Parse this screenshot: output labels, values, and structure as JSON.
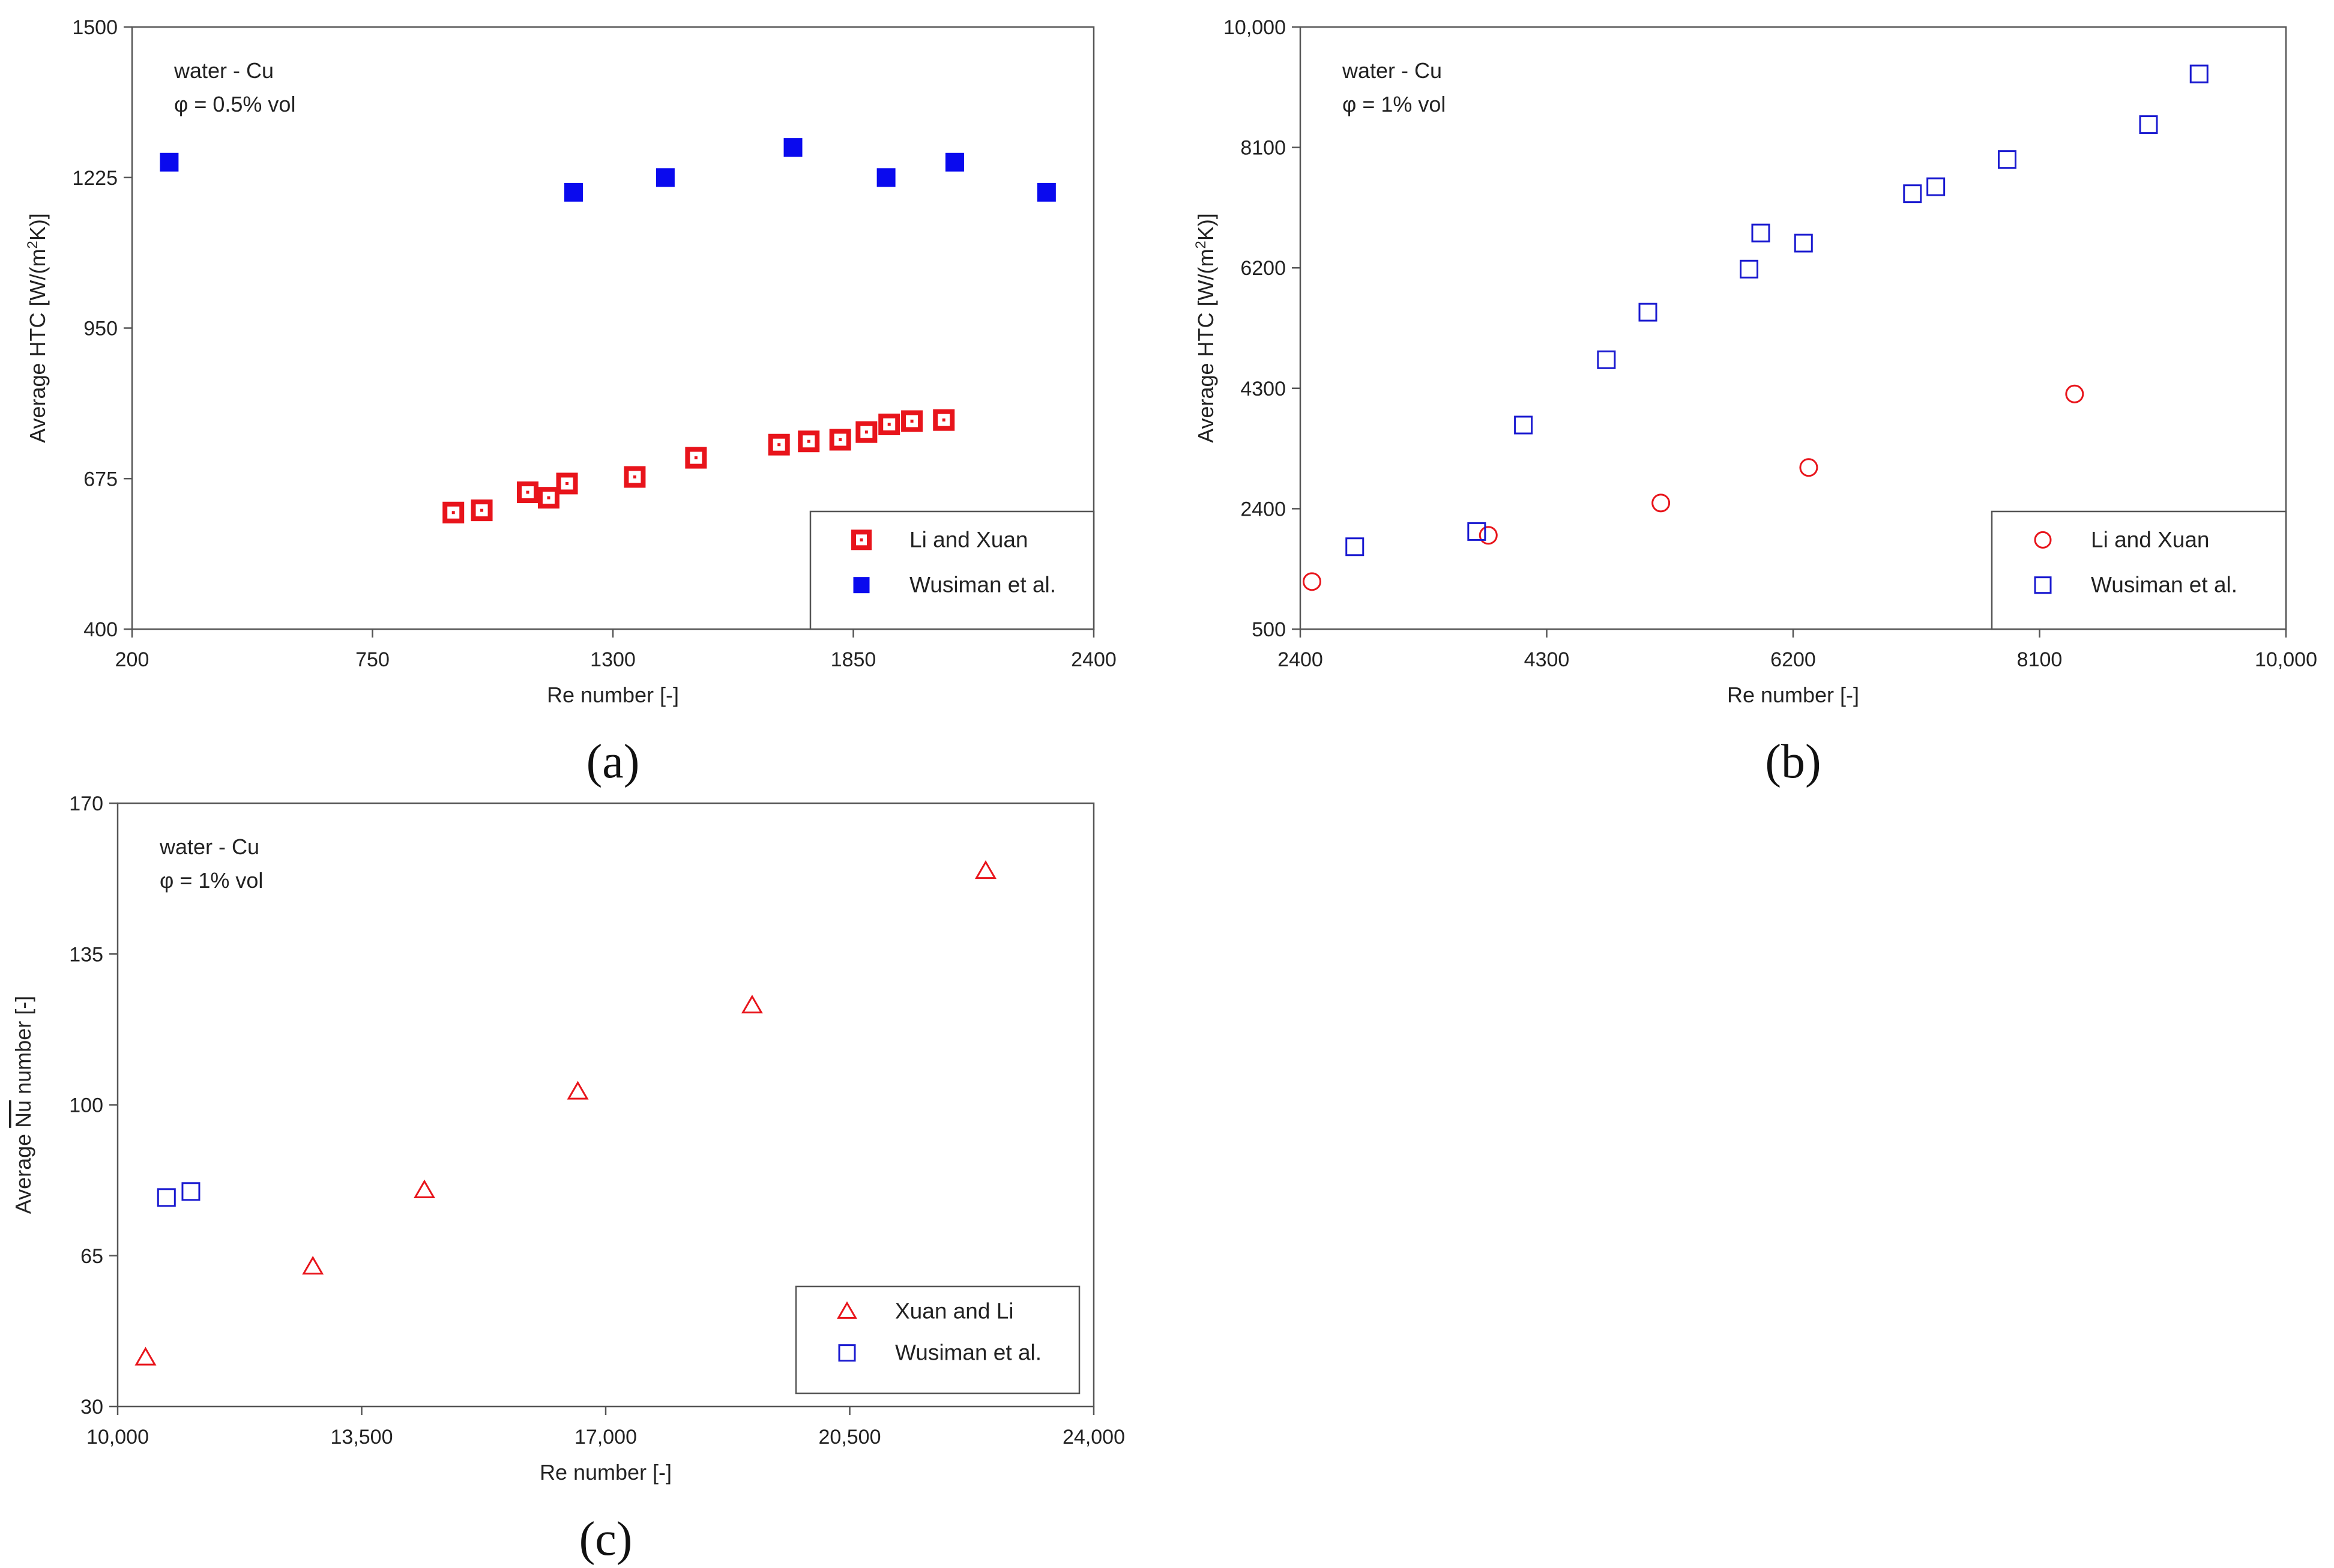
{
  "chart_data": [
    {
      "type": "scatter",
      "panel_label": "(a)",
      "panel_letter": "a",
      "title": "",
      "xlabel": "Re number [-]",
      "ylabel": "Average HTC [W/(m²K)]",
      "ylabel_parts": [
        "Average HTC [W/(m",
        "2",
        "K)]"
      ],
      "xlim": [
        200,
        2400
      ],
      "ylim": [
        400,
        1500
      ],
      "xticks": [
        200,
        750,
        1300,
        1850,
        2400
      ],
      "yticks": [
        400,
        675,
        950,
        1225,
        1500
      ],
      "xtick_labels": [
        "200",
        "750",
        "1300",
        "1850",
        "2400"
      ],
      "ytick_labels": [
        "400",
        "675",
        "950",
        "1225",
        "1500"
      ],
      "annotations": [
        "water - Cu",
        "φ = 0.5% vol"
      ],
      "grid": false,
      "legend_position": "bottom-right",
      "series": [
        {
          "name": "Li and Xuan",
          "marker": "square-dotted",
          "color": "#e8141b",
          "points": [
            [
              935,
              613
            ],
            [
              1000,
              617
            ],
            [
              1105,
              650
            ],
            [
              1153,
              640
            ],
            [
              1195,
              666
            ],
            [
              1350,
              678
            ],
            [
              1490,
              713
            ],
            [
              1680,
              737
            ],
            [
              1748,
              743
            ],
            [
              1820,
              746
            ],
            [
              1880,
              760
            ],
            [
              1932,
              774
            ],
            [
              1984,
              780
            ],
            [
              2057,
              782
            ]
          ]
        },
        {
          "name": "Wusiman et al.",
          "marker": "square-filled",
          "color": "#0a0aee",
          "points": [
            [
              285,
              1253
            ],
            [
              1210,
              1198
            ],
            [
              1420,
              1225
            ],
            [
              1712,
              1280
            ],
            [
              1925,
              1225
            ],
            [
              2082,
              1253
            ],
            [
              2292,
              1198
            ]
          ]
        }
      ]
    },
    {
      "type": "scatter",
      "panel_label": "(b)",
      "panel_letter": "b",
      "title": "",
      "xlabel": "Re number [-]",
      "ylabel": "Average HTC [W/(m²K)]",
      "ylabel_parts": [
        "Average HTC [W/(m",
        "2",
        "K)]"
      ],
      "xlim": [
        2400,
        10000
      ],
      "ylim": [
        500,
        10000
      ],
      "xticks": [
        2400,
        4300,
        6200,
        8100,
        10000
      ],
      "yticks": [
        500,
        2400,
        4300,
        6200,
        8100,
        10000
      ],
      "xtick_labels": [
        "2400",
        "4300",
        "6200",
        "8100",
        "10,000"
      ],
      "ytick_labels": [
        "500",
        "2400",
        "4300",
        "6200",
        "8100",
        "10,000"
      ],
      "annotations": [
        "water - Cu",
        "φ = 1% vol"
      ],
      "grid": false,
      "legend_position": "bottom-right",
      "series": [
        {
          "name": "Li and Xuan",
          "marker": "circle-open",
          "color": "#e8141b",
          "points": [
            [
              2490,
              1250
            ],
            [
              3850,
              1980
            ],
            [
              5180,
              2490
            ],
            [
              6320,
              3050
            ],
            [
              8370,
              4210
            ]
          ]
        },
        {
          "name": "Wusiman et al.",
          "marker": "square-open",
          "color": "#1a1ad0",
          "points": [
            [
              2820,
              1800
            ],
            [
              3760,
              2040
            ],
            [
              4120,
              3720
            ],
            [
              4760,
              4750
            ],
            [
              5080,
              5500
            ],
            [
              5860,
              6180
            ],
            [
              5950,
              6750
            ],
            [
              6280,
              6590
            ],
            [
              7120,
              7370
            ],
            [
              7300,
              7480
            ],
            [
              7850,
              7910
            ],
            [
              8940,
              8460
            ],
            [
              9330,
              9260
            ]
          ]
        }
      ]
    },
    {
      "type": "scatter",
      "panel_label": "(c)",
      "panel_letter": "c",
      "title": "",
      "xlabel": "Re number [-]",
      "ylabel_parts": [
        "Average ",
        "Nu",
        " number [-]"
      ],
      "xlim": [
        10000,
        24000
      ],
      "ylim": [
        30,
        170
      ],
      "xticks": [
        10000,
        13500,
        17000,
        20500,
        24000
      ],
      "yticks": [
        30,
        65,
        100,
        135,
        170
      ],
      "xtick_labels": [
        "10,000",
        "13,500",
        "17,000",
        "20,500",
        "24,000"
      ],
      "ytick_labels": [
        "30",
        "65",
        "100",
        "135",
        "170"
      ],
      "annotations": [
        "water - Cu",
        "φ = 1% vol"
      ],
      "grid": false,
      "legend_position": "bottom-right",
      "series": [
        {
          "name": "Xuan and Li",
          "marker": "triangle-open",
          "color": "#e8141b",
          "points": [
            [
              10400,
              41.4
            ],
            [
              12800,
              62.5
            ],
            [
              14400,
              80.2
            ],
            [
              16600,
              103.1
            ],
            [
              19100,
              123.1
            ],
            [
              22450,
              154.3
            ]
          ]
        },
        {
          "name": "Wusiman et al.",
          "marker": "square-open",
          "color": "#1a1ad0",
          "points": [
            [
              10700,
              78.5
            ],
            [
              11050,
              79.9
            ]
          ]
        }
      ]
    }
  ]
}
